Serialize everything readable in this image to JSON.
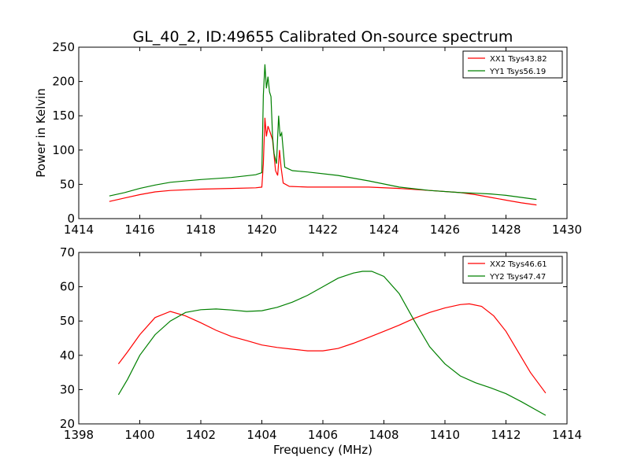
{
  "figure": {
    "title": "GL_40_2, ID:49655 Calibrated On-source spectrum",
    "xlabel": "Frequency (MHz)",
    "ylabel": "Power in Kelvin"
  },
  "chart_data": [
    {
      "type": "line",
      "title": "GL_40_2, ID:49655 Calibrated On-source spectrum",
      "xlabel": "",
      "ylabel": "Power in Kelvin",
      "xlim": [
        1414,
        1430
      ],
      "ylim": [
        0,
        250
      ],
      "xticks": [
        "1414",
        "1416",
        "1418",
        "1420",
        "1422",
        "1424",
        "1426",
        "1428",
        "1430"
      ],
      "yticks": [
        "0",
        "50",
        "100",
        "150",
        "200",
        "250"
      ],
      "grid": false,
      "legend_position": "top-right",
      "series": [
        {
          "name": "XX1 Tsys43.82",
          "color": "#ff0000",
          "x": [
            1415.0,
            1415.5,
            1416.0,
            1416.5,
            1417.0,
            1418.0,
            1419.0,
            1419.8,
            1420.0,
            1420.05,
            1420.1,
            1420.15,
            1420.2,
            1420.28,
            1420.35,
            1420.45,
            1420.52,
            1420.58,
            1420.63,
            1420.7,
            1420.9,
            1421.5,
            1422.5,
            1423.5,
            1424.5,
            1425.5,
            1426.5,
            1427.0,
            1427.5,
            1428.0,
            1428.5,
            1429.0
          ],
          "y": [
            25,
            30,
            35,
            39,
            41,
            43,
            44,
            45,
            46,
            80,
            147,
            120,
            135,
            125,
            115,
            70,
            63,
            100,
            75,
            52,
            47,
            46,
            46,
            46,
            44,
            41,
            38,
            35,
            31,
            27,
            23,
            20
          ]
        },
        {
          "name": "YY1 Tsys56.19",
          "color": "#008000",
          "x": [
            1415.0,
            1415.5,
            1416.0,
            1416.5,
            1417.0,
            1418.0,
            1419.0,
            1419.8,
            1420.0,
            1420.05,
            1420.1,
            1420.15,
            1420.2,
            1420.25,
            1420.3,
            1420.35,
            1420.4,
            1420.48,
            1420.55,
            1420.6,
            1420.65,
            1420.75,
            1421.0,
            1421.5,
            1422.5,
            1423.5,
            1424.5,
            1425.5,
            1426.5,
            1427.0,
            1427.5,
            1428.0,
            1428.5,
            1429.0
          ],
          "y": [
            33,
            38,
            44,
            49,
            53,
            57,
            60,
            64,
            67,
            180,
            225,
            190,
            207,
            185,
            178,
            120,
            95,
            80,
            150,
            120,
            125,
            75,
            70,
            68,
            63,
            55,
            46,
            41,
            38,
            37,
            36,
            34,
            31,
            28
          ]
        }
      ]
    },
    {
      "type": "line",
      "title": "",
      "xlabel": "Frequency (MHz)",
      "ylabel": "",
      "xlim": [
        1398,
        1414
      ],
      "ylim": [
        20,
        70
      ],
      "xticks": [
        "1398",
        "1400",
        "1402",
        "1404",
        "1406",
        "1408",
        "1410",
        "1412",
        "1414"
      ],
      "yticks": [
        "20",
        "30",
        "40",
        "50",
        "60",
        "70"
      ],
      "grid": false,
      "legend_position": "top-right",
      "series": [
        {
          "name": "XX2 Tsys46.61",
          "color": "#ff0000",
          "x": [
            1399.3,
            1399.6,
            1400.0,
            1400.5,
            1401.0,
            1401.5,
            1402.0,
            1402.5,
            1403.0,
            1403.5,
            1404.0,
            1404.5,
            1405.0,
            1405.5,
            1406.0,
            1406.5,
            1407.0,
            1407.5,
            1408.0,
            1408.5,
            1409.0,
            1409.5,
            1410.0,
            1410.5,
            1410.8,
            1411.2,
            1411.6,
            1412.0,
            1412.4,
            1412.8,
            1413.3
          ],
          "y": [
            37.5,
            41,
            46,
            51,
            52.8,
            51.5,
            49.5,
            47.3,
            45.5,
            44.3,
            43,
            42.3,
            41.8,
            41.3,
            41.3,
            42,
            43.5,
            45.2,
            47,
            48.8,
            50.8,
            52.5,
            53.8,
            54.8,
            55,
            54.3,
            51.5,
            47,
            41,
            35,
            29
          ]
        },
        {
          "name": "YY2 Tsys47.47",
          "color": "#008000",
          "x": [
            1399.3,
            1399.6,
            1400.0,
            1400.5,
            1401.0,
            1401.5,
            1402.0,
            1402.5,
            1403.0,
            1403.5,
            1404.0,
            1404.5,
            1405.0,
            1405.5,
            1406.0,
            1406.5,
            1407.0,
            1407.3,
            1407.6,
            1408.0,
            1408.5,
            1409.0,
            1409.5,
            1410.0,
            1410.5,
            1411.0,
            1411.5,
            1412.0,
            1412.5,
            1413.3
          ],
          "y": [
            28.5,
            33,
            40,
            46,
            50,
            52.5,
            53.3,
            53.5,
            53.2,
            52.8,
            53,
            54,
            55.5,
            57.5,
            60,
            62.5,
            64,
            64.5,
            64.5,
            63,
            58,
            50,
            42.5,
            37.5,
            34,
            32,
            30.5,
            28.8,
            26.5,
            22.5
          ]
        }
      ]
    }
  ]
}
